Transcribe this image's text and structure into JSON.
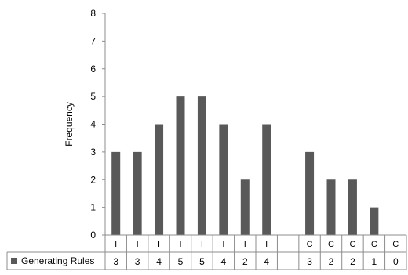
{
  "chart_data": {
    "type": "bar",
    "ylabel": "Frequency",
    "ylim": [
      0,
      8
    ],
    "yticks": [
      0,
      1,
      2,
      3,
      4,
      5,
      6,
      7,
      8
    ],
    "grid": false,
    "legend_position": "bottom-left",
    "categories": [
      "I",
      "I",
      "I",
      "I",
      "I",
      "I",
      "I",
      "I",
      "",
      "C",
      "C",
      "C",
      "C",
      "C"
    ],
    "series": [
      {
        "name": "Generating Rules",
        "color": "#595959",
        "values": [
          3,
          3,
          4,
          5,
          5,
          4,
          2,
          4,
          null,
          3,
          2,
          2,
          1,
          0
        ]
      }
    ]
  }
}
